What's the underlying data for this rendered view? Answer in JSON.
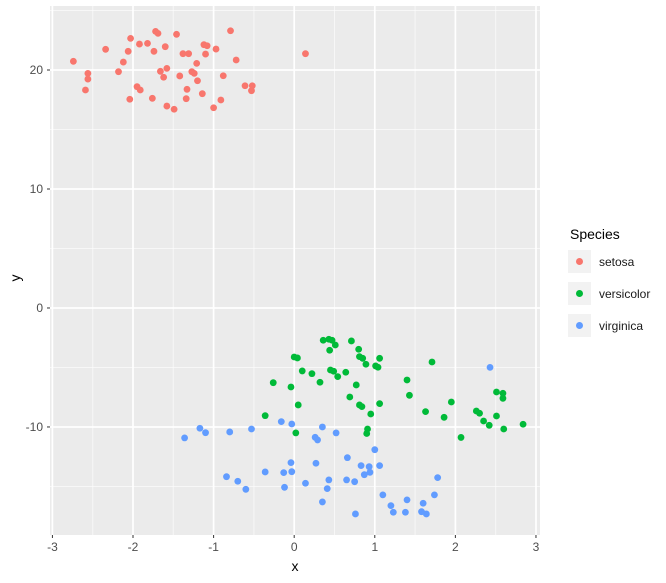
{
  "chart_data": {
    "type": "scatter",
    "title": "",
    "xlabel": "x",
    "ylabel": "y",
    "xlim": [
      -3.03,
      3.05
    ],
    "ylim": [
      -19.08,
      25.38
    ],
    "grid": "on",
    "x_tick_values": [
      -3,
      -2,
      -1,
      0,
      1,
      2,
      3
    ],
    "x_tick_labels": [
      "-3",
      "-2",
      "-1",
      "0",
      "1",
      "2",
      "3"
    ],
    "y_tick_values": [
      20,
      10,
      0,
      -10
    ],
    "y_tick_labels": [
      "20",
      "10",
      "0",
      "-10"
    ],
    "x_minor_values": [
      -2.5,
      -1.5,
      -0.5,
      0.5,
      1.5,
      2.5
    ],
    "y_minor_values": [
      25,
      15,
      5,
      -5,
      -15
    ],
    "legend": {
      "title": "Species",
      "position": "right"
    },
    "colors": {
      "panel_background": "#EBEBEB",
      "grid_line": "#FFFFFF",
      "tick_text": "#4D4D4D",
      "tick_mark": "#333333",
      "legend_key_background": "#F2F2F2"
    },
    "series": [
      {
        "name": "setosa",
        "color": "#F8766D",
        "points": [
          [
            -2.74,
            20.73
          ],
          [
            -2.56,
            19.72
          ],
          [
            -2.56,
            19.24
          ],
          [
            -2.59,
            18.32
          ],
          [
            -2.34,
            21.74
          ],
          [
            -2.18,
            19.86
          ],
          [
            -2.12,
            20.67
          ],
          [
            -2.06,
            21.57
          ],
          [
            -2.03,
            22.66
          ],
          [
            -2.04,
            17.54
          ],
          [
            -1.95,
            18.6
          ],
          [
            -1.92,
            22.18
          ],
          [
            -1.91,
            18.32
          ],
          [
            -1.82,
            22.24
          ],
          [
            -1.76,
            17.62
          ],
          [
            -1.74,
            21.57
          ],
          [
            -1.72,
            23.25
          ],
          [
            -1.69,
            23.08
          ],
          [
            -1.6,
            21.96
          ],
          [
            -1.66,
            19.89
          ],
          [
            -1.62,
            19.39
          ],
          [
            -1.58,
            20.14
          ],
          [
            -1.58,
            16.97
          ],
          [
            -1.49,
            16.7
          ],
          [
            -1.46,
            23.0
          ],
          [
            -1.42,
            19.5
          ],
          [
            -1.38,
            21.37
          ],
          [
            -1.31,
            21.37
          ],
          [
            -1.33,
            18.38
          ],
          [
            -1.34,
            17.59
          ],
          [
            -1.27,
            19.86
          ],
          [
            -1.24,
            19.72
          ],
          [
            -1.21,
            20.56
          ],
          [
            -1.2,
            19.1
          ],
          [
            -1.14,
            18.01
          ],
          [
            -1.12,
            22.13
          ],
          [
            -1.08,
            22.04
          ],
          [
            -1.1,
            21.34
          ],
          [
            -0.97,
            21.76
          ],
          [
            -0.91,
            17.48
          ],
          [
            -0.88,
            19.52
          ],
          [
            -0.79,
            23.3
          ],
          [
            -0.72,
            20.84
          ],
          [
            -0.61,
            18.68
          ],
          [
            -0.53,
            18.26
          ],
          [
            -0.52,
            18.68
          ],
          [
            -1.0,
            16.83
          ],
          [
            0.14,
            21.37
          ]
        ]
      },
      {
        "name": "versicolor",
        "color": "#00BA38",
        "points": [
          [
            0.36,
            -2.71
          ],
          [
            0.43,
            -2.63
          ],
          [
            0.47,
            -2.71
          ],
          [
            0.51,
            -3.11
          ],
          [
            0.44,
            -3.55
          ],
          [
            0.71,
            -2.77
          ],
          [
            0.8,
            -3.47
          ],
          [
            0.81,
            -4.09
          ],
          [
            0.85,
            -4.23
          ],
          [
            1.06,
            -4.23
          ],
          [
            0.0,
            -4.12
          ],
          [
            0.04,
            -4.2
          ],
          [
            0.1,
            -5.29
          ],
          [
            0.22,
            -5.52
          ],
          [
            0.32,
            -6.24
          ],
          [
            0.45,
            -5.21
          ],
          [
            0.49,
            -5.32
          ],
          [
            0.54,
            -5.77
          ],
          [
            0.64,
            -5.4
          ],
          [
            0.89,
            -4.73
          ],
          [
            1.01,
            -4.87
          ],
          [
            1.04,
            -4.98
          ],
          [
            0.77,
            -6.47
          ],
          [
            -0.26,
            -6.28
          ],
          [
            -0.04,
            -6.64
          ],
          [
            0.69,
            -7.48
          ],
          [
            0.81,
            -8.15
          ],
          [
            0.84,
            -8.29
          ],
          [
            0.05,
            -8.15
          ],
          [
            0.95,
            -8.91
          ],
          [
            1.06,
            -8.04
          ],
          [
            -0.36,
            -9.05
          ],
          [
            1.71,
            -4.54
          ],
          [
            1.4,
            -6.05
          ],
          [
            1.43,
            -7.34
          ],
          [
            1.95,
            -7.9
          ],
          [
            1.63,
            -8.71
          ],
          [
            1.86,
            -9.19
          ],
          [
            2.51,
            -7.06
          ],
          [
            2.59,
            -7.17
          ],
          [
            2.59,
            -7.59
          ],
          [
            2.26,
            -8.66
          ],
          [
            2.3,
            -8.85
          ],
          [
            2.35,
            -9.5
          ],
          [
            2.42,
            -9.86
          ],
          [
            2.51,
            -9.08
          ],
          [
            2.6,
            -10.17
          ],
          [
            2.84,
            -9.77
          ],
          [
            2.07,
            -10.88
          ],
          [
            0.91,
            -10.17
          ],
          [
            0.9,
            -10.55
          ],
          [
            0.02,
            -10.5
          ]
        ]
      },
      {
        "name": "virginica",
        "color": "#619CFF",
        "points": [
          [
            2.43,
            -4.99
          ],
          [
            -1.36,
            -10.92
          ],
          [
            -1.17,
            -10.11
          ],
          [
            -1.1,
            -10.48
          ],
          [
            -0.8,
            -10.42
          ],
          [
            -0.53,
            -10.17
          ],
          [
            -0.16,
            -9.55
          ],
          [
            -0.03,
            -9.75
          ],
          [
            0.35,
            -10.0
          ],
          [
            0.52,
            -10.5
          ],
          [
            0.26,
            -10.87
          ],
          [
            0.29,
            -11.09
          ],
          [
            -0.36,
            -13.78
          ],
          [
            -0.13,
            -13.84
          ],
          [
            -0.04,
            -13.0
          ],
          [
            -0.03,
            -13.76
          ],
          [
            -0.84,
            -14.18
          ],
          [
            -0.7,
            -14.56
          ],
          [
            -0.6,
            -15.24
          ],
          [
            -0.12,
            -15.07
          ],
          [
            0.14,
            -14.73
          ],
          [
            0.27,
            -13.05
          ],
          [
            0.43,
            -14.45
          ],
          [
            0.41,
            -15.18
          ],
          [
            0.35,
            -16.3
          ],
          [
            1.0,
            -11.91
          ],
          [
            0.66,
            -12.58
          ],
          [
            0.83,
            -13.25
          ],
          [
            0.93,
            -13.34
          ],
          [
            0.94,
            -13.81
          ],
          [
            0.87,
            -14.01
          ],
          [
            1.06,
            -13.25
          ],
          [
            0.65,
            -14.45
          ],
          [
            0.75,
            -14.6
          ],
          [
            1.78,
            -14.26
          ],
          [
            1.1,
            -15.71
          ],
          [
            1.4,
            -16.13
          ],
          [
            1.38,
            -17.17
          ],
          [
            1.2,
            -16.61
          ],
          [
            1.23,
            -17.17
          ],
          [
            1.6,
            -16.41
          ],
          [
            1.74,
            -15.71
          ],
          [
            1.58,
            -17.12
          ],
          [
            1.64,
            -17.31
          ],
          [
            0.76,
            -17.31
          ]
        ]
      }
    ]
  }
}
